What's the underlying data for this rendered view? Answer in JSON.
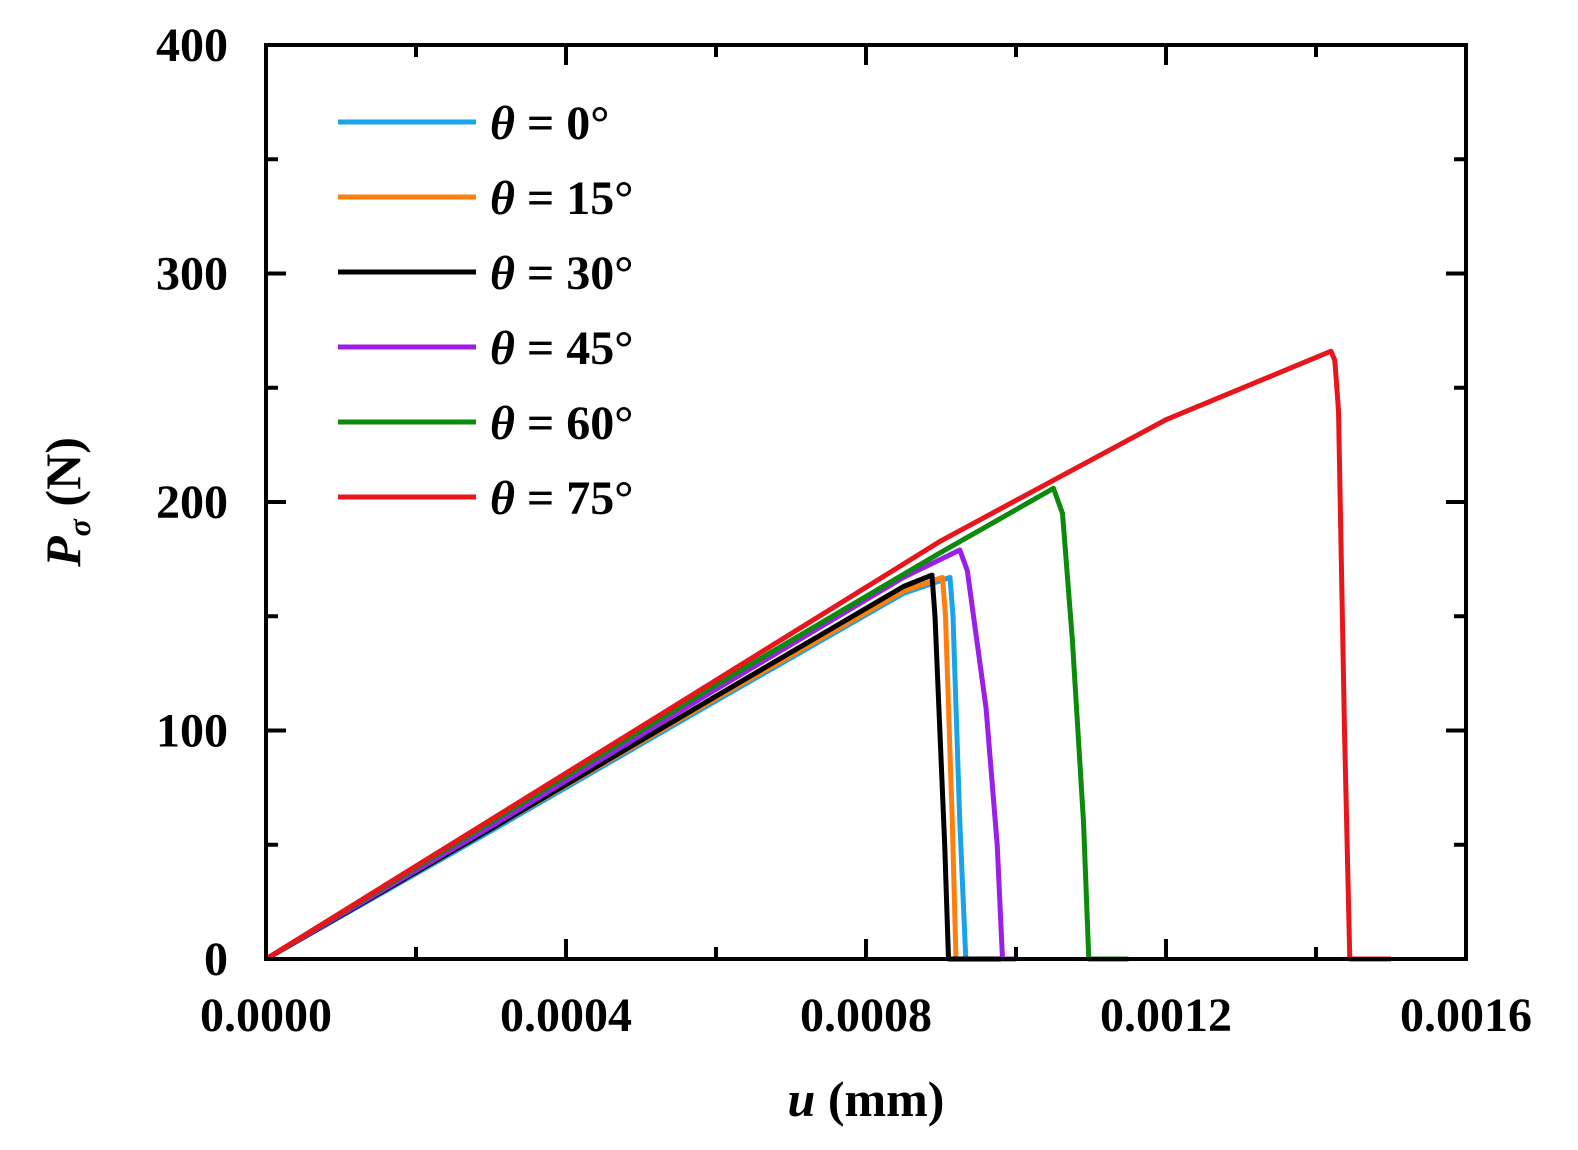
{
  "chart_data": {
    "type": "line",
    "title": "",
    "xlabel_var": "u",
    "xlabel_unit": "(mm)",
    "ylabel_var": "P",
    "ylabel_sub": "σ",
    "ylabel_unit": "(N)",
    "xlim": [
      0,
      0.0016
    ],
    "ylim": [
      0,
      400
    ],
    "x_ticks": [
      0,
      0.0004,
      0.0008,
      0.0012,
      0.0016
    ],
    "x_tick_labels": [
      "0.0000",
      "0.0004",
      "0.0008",
      "0.0012",
      "0.0016"
    ],
    "y_ticks": [
      0,
      100,
      200,
      300,
      400
    ],
    "y_tick_labels": [
      "0",
      "100",
      "200",
      "300",
      "400"
    ],
    "legend_position": "top-left",
    "series": [
      {
        "name": "θ = 0°",
        "symbol": "θ",
        "text": " = 0°",
        "color": "#1aa3e8",
        "points": [
          [
            0,
            0
          ],
          [
            0.0003,
            56
          ],
          [
            0.0006,
            113
          ],
          [
            0.00085,
            160
          ],
          [
            0.000912,
            167
          ],
          [
            0.000916,
            150
          ],
          [
            0.000925,
            60
          ],
          [
            0.000933,
            0
          ],
          [
            0.00099,
            0
          ]
        ]
      },
      {
        "name": "θ = 15°",
        "symbol": "θ",
        "text": " = 15°",
        "color": "#ff7f0e",
        "points": [
          [
            0,
            0
          ],
          [
            0.0003,
            57
          ],
          [
            0.0006,
            114
          ],
          [
            0.00085,
            161
          ],
          [
            0.000902,
            167
          ],
          [
            0.000906,
            150
          ],
          [
            0.000915,
            60
          ],
          [
            0.00092,
            0
          ],
          [
            0.00095,
            0
          ]
        ]
      },
      {
        "name": "θ = 30°",
        "symbol": "θ",
        "text": " = 30°",
        "color": "#000000",
        "points": [
          [
            0,
            0
          ],
          [
            0.0003,
            57
          ],
          [
            0.0006,
            115
          ],
          [
            0.00085,
            163
          ],
          [
            0.000888,
            168
          ],
          [
            0.000892,
            150
          ],
          [
            0.000905,
            50
          ],
          [
            0.00091,
            0
          ],
          [
            0.00098,
            0
          ]
        ]
      },
      {
        "name": "θ = 45°",
        "symbol": "θ",
        "text": " = 45°",
        "color": "#9b1fe8",
        "points": [
          [
            0,
            0
          ],
          [
            0.0003,
            58
          ],
          [
            0.0006,
            118
          ],
          [
            0.00085,
            167
          ],
          [
            0.000925,
            179
          ],
          [
            0.000935,
            170
          ],
          [
            0.00096,
            110
          ],
          [
            0.000975,
            50
          ],
          [
            0.000982,
            0
          ],
          [
            0.001,
            0
          ]
        ]
      },
      {
        "name": "θ = 60°",
        "symbol": "θ",
        "text": " = 60°",
        "color": "#0b8a0b",
        "points": [
          [
            0,
            0
          ],
          [
            0.0003,
            60
          ],
          [
            0.0006,
            120
          ],
          [
            0.0009,
            178
          ],
          [
            0.00105,
            206
          ],
          [
            0.001062,
            195
          ],
          [
            0.001075,
            140
          ],
          [
            0.00109,
            60
          ],
          [
            0.001097,
            0
          ],
          [
            0.00115,
            0
          ]
        ]
      },
      {
        "name": "θ = 75°",
        "symbol": "θ",
        "text": " = 75°",
        "color": "#e8161b",
        "points": [
          [
            0,
            0
          ],
          [
            0.0003,
            61
          ],
          [
            0.0006,
            122
          ],
          [
            0.0009,
            183
          ],
          [
            0.0012,
            236
          ],
          [
            0.00142,
            266
          ],
          [
            0.001425,
            262
          ],
          [
            0.00143,
            240
          ],
          [
            0.001438,
            100
          ],
          [
            0.001445,
            0
          ],
          [
            0.0015,
            0
          ]
        ]
      }
    ]
  }
}
